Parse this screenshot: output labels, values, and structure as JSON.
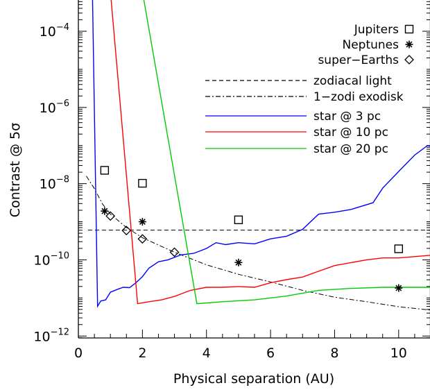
{
  "chart_data": {
    "type": "line",
    "xlabel": "Physical separation (AU)",
    "ylabel": "Contrast @ 5σ",
    "xlim": [
      0,
      11
    ],
    "ylim_log10": [
      -12,
      -3
    ],
    "yscale": "log",
    "x_ticks": [
      {
        "value": 0,
        "label": "0"
      },
      {
        "value": 2,
        "label": "2"
      },
      {
        "value": 4,
        "label": "4"
      },
      {
        "value": 6,
        "label": "6"
      },
      {
        "value": 8,
        "label": "8"
      },
      {
        "value": 10,
        "label": "10"
      }
    ],
    "y_ticks": [
      {
        "log": -12,
        "base": "10",
        "exp": "−12"
      },
      {
        "log": -10,
        "base": "10",
        "exp": "−10"
      },
      {
        "log": -8,
        "base": "10",
        "exp": "−8"
      },
      {
        "log": -6,
        "base": "10",
        "exp": "−6"
      },
      {
        "log": -4,
        "base": "10",
        "exp": "−4"
      }
    ],
    "legend_position": "top-right",
    "markers": [
      {
        "name": "Jupiters",
        "symbol": "square",
        "points": [
          [
            0.82,
            -7.65
          ],
          [
            2.0,
            -7.99
          ],
          [
            5.0,
            -8.95
          ],
          [
            10.0,
            -9.71
          ]
        ]
      },
      {
        "name": "Neptunes",
        "symbol": "asterisk",
        "points": [
          [
            0.82,
            -8.72
          ],
          [
            2.0,
            -9.0
          ],
          [
            5.0,
            -10.07
          ],
          [
            10.0,
            -10.74
          ]
        ]
      },
      {
        "name": "super−Earths",
        "symbol": "diamond",
        "points": [
          [
            1.0,
            -8.85
          ],
          [
            1.5,
            -9.23
          ],
          [
            2.0,
            -9.45
          ],
          [
            3.0,
            -9.8
          ]
        ]
      }
    ],
    "reference_lines": [
      {
        "name": "zodiacal light",
        "dash": "dashed",
        "points": [
          [
            0.3,
            -9.22
          ],
          [
            11.0,
            -9.22
          ]
        ]
      },
      {
        "name": "1−zodi exodisk",
        "dash": "dashdot",
        "points": [
          [
            0.25,
            -7.8
          ],
          [
            0.5,
            -8.13
          ],
          [
            0.75,
            -8.53
          ],
          [
            1.0,
            -8.8
          ],
          [
            1.5,
            -9.15
          ],
          [
            2.0,
            -9.42
          ],
          [
            3.0,
            -9.8
          ],
          [
            4.0,
            -10.13
          ],
          [
            5.0,
            -10.38
          ],
          [
            6.0,
            -10.58
          ],
          [
            7.0,
            -10.8
          ],
          [
            8.0,
            -10.98
          ],
          [
            9.0,
            -11.1
          ],
          [
            10.0,
            -11.23
          ],
          [
            11.0,
            -11.32
          ]
        ]
      }
    ],
    "series": [
      {
        "name": "star @ 3 pc",
        "color": "#0000ff",
        "points": [
          [
            0.42,
            -2.0
          ],
          [
            0.6,
            -11.22
          ],
          [
            0.7,
            -11.08
          ],
          [
            0.85,
            -11.05
          ],
          [
            1.0,
            -10.85
          ],
          [
            1.2,
            -10.78
          ],
          [
            1.4,
            -10.72
          ],
          [
            1.6,
            -10.73
          ],
          [
            1.8,
            -10.6
          ],
          [
            2.0,
            -10.44
          ],
          [
            2.2,
            -10.22
          ],
          [
            2.5,
            -10.05
          ],
          [
            2.8,
            -10.0
          ],
          [
            3.2,
            -9.87
          ],
          [
            3.6,
            -9.83
          ],
          [
            4.0,
            -9.7
          ],
          [
            4.3,
            -9.55
          ],
          [
            4.6,
            -9.6
          ],
          [
            5.0,
            -9.55
          ],
          [
            5.5,
            -9.58
          ],
          [
            6.0,
            -9.45
          ],
          [
            6.5,
            -9.38
          ],
          [
            7.0,
            -9.2
          ],
          [
            7.5,
            -8.8
          ],
          [
            8.0,
            -8.75
          ],
          [
            8.5,
            -8.68
          ],
          [
            9.2,
            -8.5
          ],
          [
            9.5,
            -8.12
          ],
          [
            10.0,
            -7.68
          ],
          [
            10.5,
            -7.25
          ],
          [
            10.9,
            -7.0
          ],
          [
            11.0,
            -7.02
          ]
        ]
      },
      {
        "name": "star @ 10 pc",
        "color": "#ff0000",
        "points": [
          [
            0.9,
            -2.0
          ],
          [
            1.85,
            -11.15
          ],
          [
            2.2,
            -11.1
          ],
          [
            2.6,
            -11.05
          ],
          [
            3.0,
            -10.96
          ],
          [
            3.5,
            -10.8
          ],
          [
            4.0,
            -10.72
          ],
          [
            4.5,
            -10.72
          ],
          [
            5.0,
            -10.7
          ],
          [
            5.5,
            -10.72
          ],
          [
            6.0,
            -10.6
          ],
          [
            6.5,
            -10.52
          ],
          [
            7.0,
            -10.45
          ],
          [
            7.5,
            -10.3
          ],
          [
            8.0,
            -10.15
          ],
          [
            9.0,
            -10.0
          ],
          [
            9.5,
            -9.95
          ],
          [
            10.0,
            -9.95
          ],
          [
            11.0,
            -9.88
          ]
        ]
      },
      {
        "name": "star @ 20 pc",
        "color": "#00cc00",
        "points": [
          [
            1.8,
            -2.0
          ],
          [
            3.7,
            -11.15
          ],
          [
            4.5,
            -11.1
          ],
          [
            5.5,
            -11.05
          ],
          [
            6.5,
            -10.95
          ],
          [
            7.5,
            -10.8
          ],
          [
            8.5,
            -10.75
          ],
          [
            9.5,
            -10.72
          ],
          [
            10.5,
            -10.72
          ],
          [
            11.0,
            -10.72
          ]
        ]
      }
    ]
  }
}
